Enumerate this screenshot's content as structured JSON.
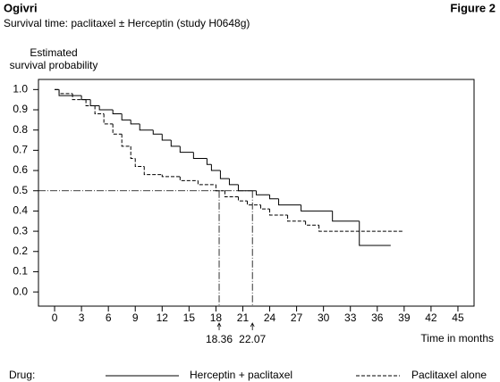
{
  "header": {
    "product": "Ogivri",
    "figure": "Figure 2"
  },
  "chart_data": {
    "type": "step",
    "title": "Survival time: paclitaxel ± Herceptin (study H0648g)",
    "ylabel": [
      "Estimated",
      "survival probability"
    ],
    "xlabel": "Time in months",
    "legend_title": "Drug:",
    "xlim": [
      -1.8,
      46.8
    ],
    "ylim": [
      -0.07,
      1.05
    ],
    "xticks": [
      0,
      3,
      6,
      9,
      12,
      15,
      18,
      21,
      24,
      27,
      30,
      33,
      36,
      39,
      42,
      45
    ],
    "yticks": [
      {
        "value": 1.0,
        "label": "1.0"
      },
      {
        "value": 0.9,
        "label": "0.9"
      },
      {
        "value": 0.8,
        "label": "0.8"
      },
      {
        "value": 0.7,
        "label": "0.7"
      },
      {
        "value": 0.6,
        "label": "0.6"
      },
      {
        "value": 0.5,
        "label": "0.5"
      },
      {
        "value": 0.4,
        "label": "0.4"
      },
      {
        "value": 0.3,
        "label": "0.3"
      },
      {
        "value": 0.2,
        "label": "0.2"
      },
      {
        "value": 0.1,
        "label": "0.1"
      },
      {
        "value": 0.0,
        "label": "0.0"
      }
    ],
    "reference_lines": {
      "y": 0.5,
      "x": [
        18.36,
        22.07
      ]
    },
    "series": [
      {
        "name": "Herceptin + paclitaxel",
        "color": "#000000",
        "style": "solid",
        "x": [
          0,
          0.5,
          3,
          4,
          5,
          6.5,
          7.5,
          8.5,
          9.5,
          11,
          12,
          13,
          14,
          15.5,
          17,
          17.5,
          18.5,
          19.5,
          20.5,
          22.5,
          24,
          25,
          27.5,
          31,
          34,
          37.5
        ],
        "values": [
          1.0,
          0.97,
          0.95,
          0.92,
          0.9,
          0.88,
          0.85,
          0.83,
          0.8,
          0.78,
          0.75,
          0.72,
          0.69,
          0.66,
          0.63,
          0.6,
          0.56,
          0.53,
          0.5,
          0.48,
          0.46,
          0.43,
          0.4,
          0.35,
          0.23,
          0.23
        ]
      },
      {
        "name": "Paclitaxel alone",
        "color": "#000000",
        "style": "dashed",
        "x": [
          0,
          0.5,
          2,
          3.5,
          4.5,
          5.5,
          6.5,
          7.5,
          8.5,
          9,
          10,
          12,
          14,
          16,
          18,
          19,
          20.5,
          21.5,
          23,
          24,
          26,
          28,
          29.5,
          39
        ],
        "values": [
          1.0,
          0.98,
          0.95,
          0.92,
          0.88,
          0.83,
          0.78,
          0.72,
          0.66,
          0.62,
          0.58,
          0.57,
          0.55,
          0.53,
          0.5,
          0.47,
          0.45,
          0.43,
          0.41,
          0.38,
          0.35,
          0.33,
          0.3,
          0.3
        ]
      }
    ]
  }
}
